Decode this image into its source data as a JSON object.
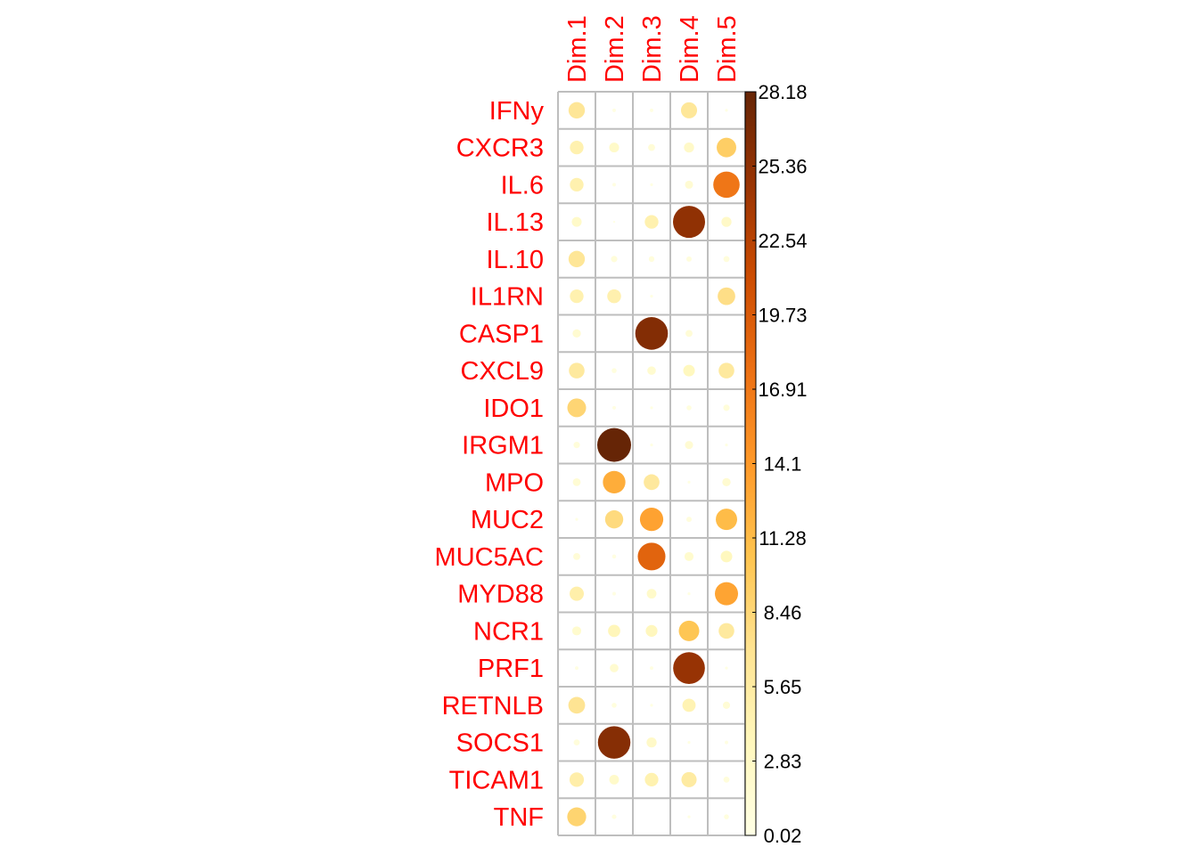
{
  "chart_data": {
    "type": "heatmap",
    "style": "corrplot-circle",
    "rows": [
      "IFNy",
      "CXCR3",
      "IL.6",
      "IL.13",
      "IL.10",
      "IL1RN",
      "CASP1",
      "CXCL9",
      "IDO1",
      "IRGM1",
      "MPO",
      "MUC2",
      "MUC5AC",
      "MYD88",
      "NCR1",
      "PRF1",
      "RETNLB",
      "SOCS1",
      "TICAM1",
      "TNF"
    ],
    "columns": [
      "Dim.1",
      "Dim.2",
      "Dim.3",
      "Dim.4",
      "Dim.5"
    ],
    "values": [
      [
        6.6,
        0.3,
        0.3,
        6.4,
        0.2
      ],
      [
        4.6,
        2.4,
        1.2,
        2.5,
        9.4
      ],
      [
        4.6,
        0.3,
        0.2,
        1.6,
        17.1
      ],
      [
        2.4,
        0.1,
        4.6,
        25.3,
        2.5
      ],
      [
        6.6,
        1.0,
        0.8,
        0.7,
        0.9
      ],
      [
        4.6,
        4.7,
        0.2,
        0.0,
        7.6
      ],
      [
        1.7,
        0.0,
        26.2,
        1.2,
        0.0
      ],
      [
        6.0,
        0.6,
        1.8,
        3.3,
        6.0
      ],
      [
        8.6,
        0.3,
        0.2,
        0.6,
        1.0
      ],
      [
        1.0,
        28.18,
        0.2,
        1.6,
        0.2
      ],
      [
        1.5,
        12.5,
        6.1,
        0.2,
        1.7
      ],
      [
        0.2,
        8.1,
        13.4,
        0.7,
        11.2
      ],
      [
        1.2,
        0.4,
        18.8,
        2.0,
        3.3
      ],
      [
        5.0,
        0.3,
        2.3,
        0.2,
        13.2
      ],
      [
        2.0,
        3.7,
        3.4,
        10.3,
        6.0
      ],
      [
        0.3,
        1.8,
        0.3,
        24.8,
        0.2
      ],
      [
        6.9,
        0.6,
        0.2,
        4.3,
        1.3
      ],
      [
        0.9,
        26.0,
        2.5,
        0.2,
        0.3
      ],
      [
        5.1,
        2.3,
        4.5,
        5.7,
        0.9
      ],
      [
        8.8,
        0.5,
        0.0,
        0.2,
        0.6
      ]
    ],
    "colorbar": {
      "min": 0.02,
      "max": 28.18,
      "tick_labels": [
        "28.18",
        "25.36",
        "22.54",
        "19.73",
        "16.91",
        "14.1",
        "11.28",
        "8.46",
        "5.65",
        "2.83",
        "0.02"
      ],
      "colors": [
        "#ffffe5",
        "#fff7bc",
        "#fee391",
        "#fec44f",
        "#fe9929",
        "#ec7014",
        "#cc4c02",
        "#993404",
        "#662506"
      ]
    },
    "label_color": "#ff0000",
    "grid_color": "#bebebe",
    "grid": true
  }
}
